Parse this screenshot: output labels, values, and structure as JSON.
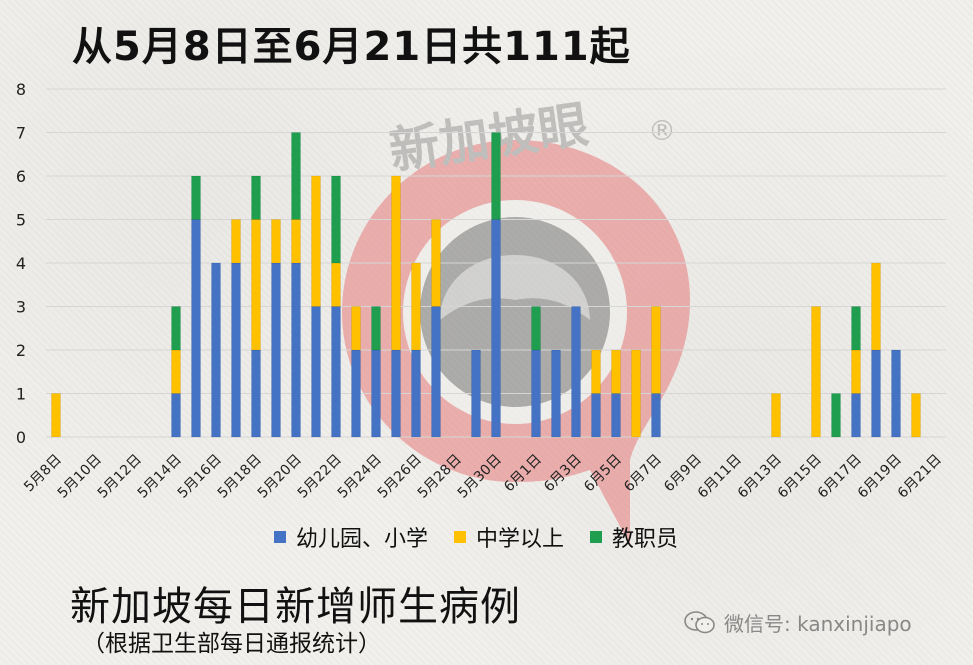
{
  "header": {
    "title": "从5月8日至6月21日共111起"
  },
  "footer": {
    "title": "新加坡每日新增师生病例",
    "subtitle": "（根据卫生部每日通报统计）",
    "wechat": "微信号: kanxinjiapo"
  },
  "watermark": {
    "text": "新加坡眼",
    "registered": "®"
  },
  "colors": {
    "primary": "#4472c4",
    "secondary": "#ffc000",
    "staff": "#1e9e4e",
    "watermark": "#e06060"
  },
  "chart_data": {
    "type": "bar",
    "stacked": true,
    "title": "",
    "xlabel": "",
    "ylabel": "",
    "ylim": [
      0,
      8
    ],
    "yticks": [
      0,
      1,
      2,
      3,
      4,
      5,
      6,
      7,
      8
    ],
    "legend_position": "bottom",
    "categories": [
      "5月8日",
      "5月9日",
      "5月10日",
      "5月11日",
      "5月12日",
      "5月13日",
      "5月14日",
      "5月15日",
      "5月16日",
      "5月17日",
      "5月18日",
      "5月19日",
      "5月20日",
      "5月21日",
      "5月22日",
      "5月23日",
      "5月24日",
      "5月25日",
      "5月26日",
      "5月27日",
      "5月28日",
      "5月29日",
      "5月30日",
      "5月31日",
      "6月1日",
      "6月2日",
      "6月3日",
      "6月4日",
      "6月5日",
      "6月6日",
      "6月7日",
      "6月8日",
      "6月9日",
      "6月10日",
      "6月11日",
      "6月12日",
      "6月13日",
      "6月14日",
      "6月15日",
      "6月16日",
      "6月17日",
      "6月18日",
      "6月19日",
      "6月20日",
      "6月21日"
    ],
    "tick_labels": [
      "5月8日",
      "5月10日",
      "5月12日",
      "5月14日",
      "5月16日",
      "5月18日",
      "5月20日",
      "5月22日",
      "5月24日",
      "5月26日",
      "5月28日",
      "5月30日",
      "6月1日",
      "6月3日",
      "6月5日",
      "6月7日",
      "6月9日",
      "6月11日",
      "6月13日",
      "6月15日",
      "6月17日",
      "6月19日",
      "6月21日"
    ],
    "series": [
      {
        "name": "幼儿园、小学",
        "color": "#4472c4",
        "values": [
          0,
          0,
          0,
          0,
          0,
          0,
          1,
          5,
          4,
          4,
          2,
          4,
          4,
          3,
          3,
          2,
          2,
          2,
          2,
          3,
          0,
          2,
          5,
          0,
          2,
          2,
          3,
          1,
          1,
          0,
          1,
          0,
          0,
          0,
          0,
          0,
          0,
          0,
          0,
          0,
          1,
          2,
          2,
          0,
          0
        ]
      },
      {
        "name": "中学以上",
        "color": "#ffc000",
        "values": [
          1,
          0,
          0,
          0,
          0,
          0,
          1,
          0,
          0,
          1,
          3,
          1,
          1,
          3,
          1,
          1,
          0,
          4,
          2,
          2,
          0,
          0,
          0,
          0,
          0,
          0,
          0,
          1,
          1,
          2,
          2,
          0,
          0,
          0,
          0,
          0,
          1,
          0,
          3,
          0,
          1,
          2,
          0,
          1,
          0
        ]
      },
      {
        "name": "教职员",
        "color": "#1e9e4e",
        "values": [
          0,
          0,
          0,
          0,
          0,
          0,
          1,
          1,
          0,
          0,
          1,
          0,
          2,
          0,
          2,
          0,
          1,
          0,
          0,
          0,
          0,
          0,
          2,
          0,
          1,
          0,
          0,
          0,
          0,
          0,
          0,
          0,
          0,
          0,
          0,
          0,
          0,
          0,
          0,
          1,
          1,
          0,
          0,
          0,
          0
        ]
      }
    ]
  }
}
